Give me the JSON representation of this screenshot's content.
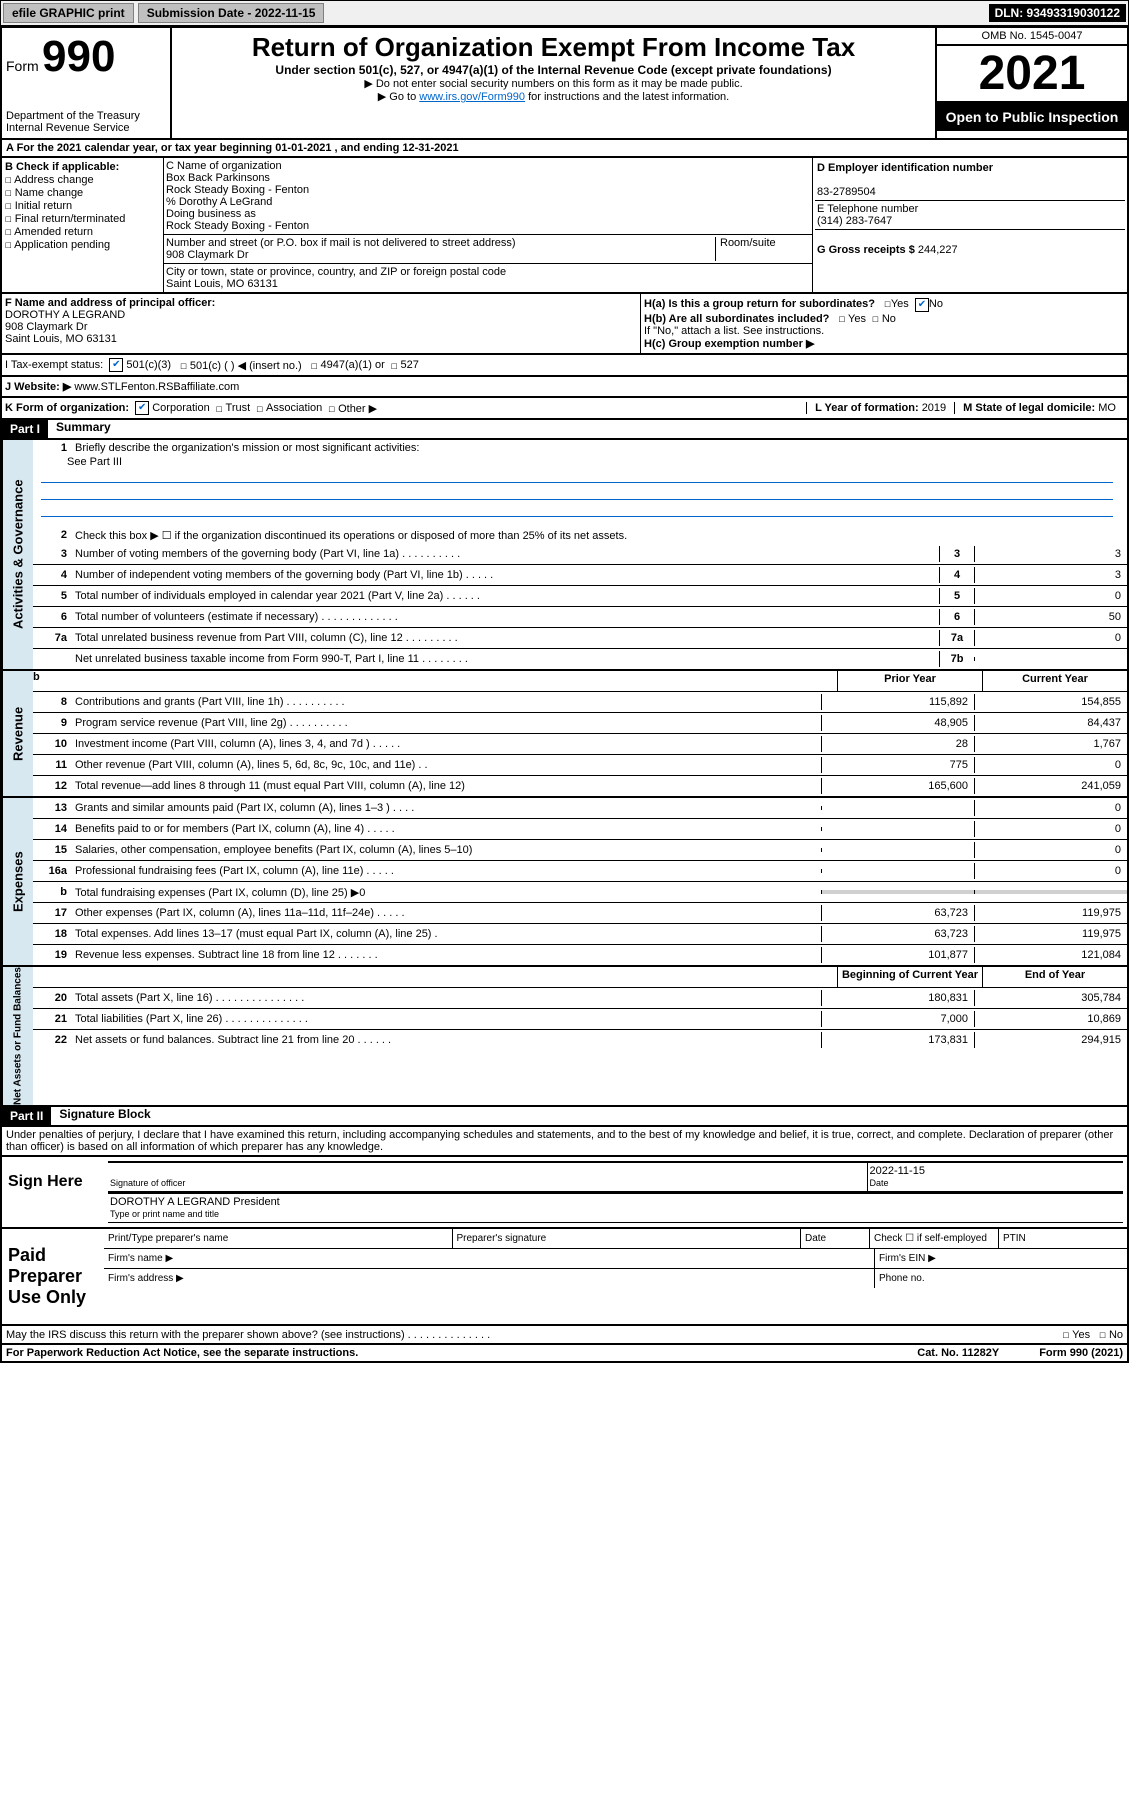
{
  "top_bar": {
    "efile": "efile GRAPHIC print",
    "submission_label": "Submission Date - 2022-11-15",
    "dln": "DLN: 93493319030122"
  },
  "header": {
    "form_word": "Form",
    "form_num": "990",
    "dept": "Department of the Treasury",
    "irs": "Internal Revenue Service",
    "title": "Return of Organization Exempt From Income Tax",
    "subtitle": "Under section 501(c), 527, or 4947(a)(1) of the Internal Revenue Code (except private foundations)",
    "note1": "▶ Do not enter social security numbers on this form as it may be made public.",
    "note2_pre": "▶ Go to ",
    "note2_link": "www.irs.gov/Form990",
    "note2_post": " for instructions and the latest information.",
    "omb": "OMB No. 1545-0047",
    "year": "2021",
    "open": "Open to Public Inspection"
  },
  "row_a": "A For the 2021 calendar year, or tax year beginning 01-01-2021   , and ending 12-31-2021",
  "section_b": {
    "title": "B Check if applicable:",
    "items": [
      "Address change",
      "Name change",
      "Initial return",
      "Final return/terminated",
      "Amended return",
      "Application pending"
    ]
  },
  "section_c": {
    "label": "C Name of organization",
    "name1": "Box Back Parkinsons",
    "name2": "Rock Steady Boxing - Fenton",
    "care": "% Dorothy A LeGrand",
    "dba_label": "Doing business as",
    "dba": "Rock Steady Boxing - Fenton",
    "addr_label": "Number and street (or P.O. box if mail is not delivered to street address)",
    "room": "Room/suite",
    "addr": "908 Claymark Dr",
    "city_label": "City or town, state or province, country, and ZIP or foreign postal code",
    "city": "Saint Louis, MO  63131"
  },
  "section_d": {
    "d_label": "D Employer identification number",
    "d_val": "83-2789504",
    "e_label": "E Telephone number",
    "e_val": "(314) 283-7647",
    "g_label": "G Gross receipts $",
    "g_val": "244,227"
  },
  "section_f": {
    "label": "F Name and address of principal officer:",
    "name": "DOROTHY A LEGRAND",
    "addr1": "908 Claymark Dr",
    "addr2": "Saint Louis, MO  63131"
  },
  "section_h": {
    "ha": "H(a)  Is this a group return for subordinates?",
    "ha_yes": "Yes",
    "ha_no": "No",
    "hb": "H(b)  Are all subordinates included?",
    "hb_yes": "Yes",
    "hb_no": "No",
    "hb_note": "If \"No,\" attach a list. See instructions.",
    "hc": "H(c)  Group exemption number ▶"
  },
  "row_i": {
    "label": "I   Tax-exempt status:",
    "opt1": "501(c)(3)",
    "opt2": "501(c) (   ) ◀ (insert no.)",
    "opt3": "4947(a)(1) or",
    "opt4": "527"
  },
  "row_j": {
    "label": "J   Website: ▶",
    "val": "www.STLFenton.RSBaffiliate.com"
  },
  "row_k": {
    "label": "K Form of organization:",
    "opts": [
      "Corporation",
      "Trust",
      "Association",
      "Other ▶"
    ],
    "l_label": "L Year of formation:",
    "l_val": "2019",
    "m_label": "M State of legal domicile:",
    "m_val": "MO"
  },
  "part1": {
    "header": "Part I",
    "title": "Summary"
  },
  "activities": {
    "label": "Activities & Governance",
    "q1": "Briefly describe the organization's mission or most significant activities:",
    "q1_val": "See Part III",
    "q2": "Check this box ▶ ☐  if the organization discontinued its operations or disposed of more than 25% of its net assets.",
    "rows": [
      {
        "n": "3",
        "desc": "Number of voting members of the governing body (Part VI, line 1a)   .   .   .   .   .   .   .   .   .   .",
        "box": "3",
        "val": "3"
      },
      {
        "n": "4",
        "desc": "Number of independent voting members of the governing body (Part VI, line 1b)    .   .   .   .   .",
        "box": "4",
        "val": "3"
      },
      {
        "n": "5",
        "desc": "Total number of individuals employed in calendar year 2021 (Part V, line 2a)    .   .   .   .   .   .",
        "box": "5",
        "val": "0"
      },
      {
        "n": "6",
        "desc": "Total number of volunteers (estimate if necessary)    .   .   .   .   .   .   .   .   .   .   .   .   .",
        "box": "6",
        "val": "50"
      },
      {
        "n": "7a",
        "desc": "Total unrelated business revenue from Part VIII, column (C), line 12   .   .   .   .   .   .   .   .   .",
        "box": "7a",
        "val": "0"
      },
      {
        "n": "",
        "desc": "Net unrelated business taxable income from Form 990-T, Part I, line 11   .   .   .   .   .   .   .   .",
        "box": "7b",
        "val": ""
      }
    ]
  },
  "revenue": {
    "label": "Revenue",
    "header_prior": "Prior Year",
    "header_current": "Current Year",
    "rows": [
      {
        "n": "8",
        "desc": "Contributions and grants (Part VIII, line 1h)    .   .   .   .   .   .   .   .   .   .",
        "prior": "115,892",
        "curr": "154,855"
      },
      {
        "n": "9",
        "desc": "Program service revenue (Part VIII, line 2g)    .   .   .   .   .   .   .   .   .   .",
        "prior": "48,905",
        "curr": "84,437"
      },
      {
        "n": "10",
        "desc": "Investment income (Part VIII, column (A), lines 3, 4, and 7d )   .   .   .   .   .",
        "prior": "28",
        "curr": "1,767"
      },
      {
        "n": "11",
        "desc": "Other revenue (Part VIII, column (A), lines 5, 6d, 8c, 9c, 10c, and 11e)    .   .",
        "prior": "775",
        "curr": "0"
      },
      {
        "n": "12",
        "desc": "Total revenue—add lines 8 through 11 (must equal Part VIII, column (A), line 12)",
        "prior": "165,600",
        "curr": "241,059"
      }
    ]
  },
  "expenses": {
    "label": "Expenses",
    "rows": [
      {
        "n": "13",
        "desc": "Grants and similar amounts paid (Part IX, column (A), lines 1–3 )   .   .   .   .",
        "prior": "",
        "curr": "0"
      },
      {
        "n": "14",
        "desc": "Benefits paid to or for members (Part IX, column (A), line 4)    .   .   .   .   .",
        "prior": "",
        "curr": "0"
      },
      {
        "n": "15",
        "desc": "Salaries, other compensation, employee benefits (Part IX, column (A), lines 5–10)",
        "prior": "",
        "curr": "0"
      },
      {
        "n": "16a",
        "desc": "Professional fundraising fees (Part IX, column (A), line 11e)    .   .   .   .   .",
        "prior": "",
        "curr": "0"
      },
      {
        "n": "b",
        "desc": "Total fundraising expenses (Part IX, column (D), line 25) ▶0",
        "prior": "grey",
        "curr": "grey"
      },
      {
        "n": "17",
        "desc": "Other expenses (Part IX, column (A), lines 11a–11d, 11f–24e)   .   .   .   .   .",
        "prior": "63,723",
        "curr": "119,975"
      },
      {
        "n": "18",
        "desc": "Total expenses. Add lines 13–17 (must equal Part IX, column (A), line 25)   .",
        "prior": "63,723",
        "curr": "119,975"
      },
      {
        "n": "19",
        "desc": "Revenue less expenses. Subtract line 18 from line 12   .   .   .   .   .   .   .",
        "prior": "101,877",
        "curr": "121,084"
      }
    ]
  },
  "netassets": {
    "label": "Net Assets or Fund Balances",
    "header_begin": "Beginning of Current Year",
    "header_end": "End of Year",
    "rows": [
      {
        "n": "20",
        "desc": "Total assets (Part X, line 16)   .   .   .   .   .   .   .   .   .   .   .   .   .   .   .",
        "begin": "180,831",
        "end": "305,784"
      },
      {
        "n": "21",
        "desc": "Total liabilities (Part X, line 26)   .   .   .   .   .   .   .   .   .   .   .   .   .   .",
        "begin": "7,000",
        "end": "10,869"
      },
      {
        "n": "22",
        "desc": "Net assets or fund balances. Subtract line 21 from line 20   .   .   .   .   .   .",
        "begin": "173,831",
        "end": "294,915"
      }
    ]
  },
  "part2": {
    "header": "Part II",
    "title": "Signature Block",
    "penalties": "Under penalties of perjury, I declare that I have examined this return, including accompanying schedules and statements, and to the best of my knowledge and belief, it is true, correct, and complete. Declaration of preparer (other than officer) is based on all information of which preparer has any knowledge."
  },
  "sign": {
    "label": "Sign Here",
    "sig_officer": "Signature of officer",
    "date_label": "Date",
    "date_val": "2022-11-15",
    "name": "DOROTHY A LEGRAND  President",
    "name_label": "Type or print name and title"
  },
  "paid": {
    "label": "Paid Preparer Use Only",
    "cols": [
      "Print/Type preparer's name",
      "Preparer's signature",
      "Date"
    ],
    "check_label": "Check ☐ if self-employed",
    "ptin": "PTIN",
    "firm_name": "Firm's name   ▶",
    "firm_ein": "Firm's EIN ▶",
    "firm_addr": "Firm's address ▶",
    "phone": "Phone no."
  },
  "footer": {
    "q": "May the IRS discuss this return with the preparer shown above? (see instructions)   .   .   .   .   .   .   .   .   .   .   .   .   .   .",
    "yes": "Yes",
    "no": "No",
    "paperwork": "For Paperwork Reduction Act Notice, see the separate instructions.",
    "cat": "Cat. No. 11282Y",
    "form": "Form 990 (2021)"
  }
}
